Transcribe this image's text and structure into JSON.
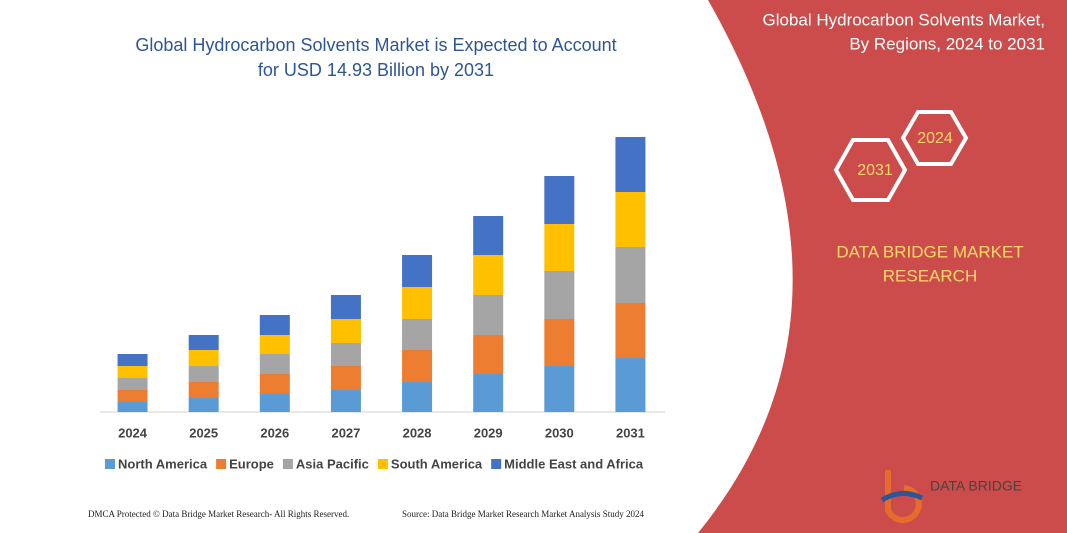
{
  "chart_data": {
    "type": "bar",
    "stacked": true,
    "title": [
      "Global Hydrocarbon Solvents Market is Expected to Account",
      "for USD 14.93 Billion by 2031"
    ],
    "categories": [
      "2024",
      "2025",
      "2026",
      "2027",
      "2028",
      "2029",
      "2030",
      "2031"
    ],
    "series": [
      {
        "name": "North America",
        "color": "#5b9bd5",
        "values": [
          10,
          14,
          18,
          22,
          30,
          38,
          46,
          54
        ]
      },
      {
        "name": "Europe",
        "color": "#ed7d31",
        "values": [
          12,
          16,
          20,
          24,
          32,
          39,
          47,
          55
        ]
      },
      {
        "name": "Asia Pacific",
        "color": "#a5a5a5",
        "values": [
          12,
          16,
          20,
          23,
          31,
          40,
          48,
          56
        ]
      },
      {
        "name": "South America",
        "color": "#ffc000",
        "values": [
          12,
          16,
          19,
          24,
          32,
          40,
          47,
          55
        ]
      },
      {
        "name": "Middle East and Africa",
        "color": "#4472c4",
        "values": [
          12,
          15,
          20,
          24,
          32,
          39,
          48,
          55
        ]
      }
    ],
    "ylim": [
      0,
      280
    ],
    "legend": "bottom"
  },
  "panel": {
    "title": [
      "Global Hydrocarbon Solvents Market,",
      "By Regions, 2024 to 2031"
    ],
    "hexagons": [
      "2024",
      "2031"
    ],
    "brand": [
      "DATA BRIDGE MARKET",
      "RESEARCH"
    ],
    "logo": "DATA BRIDGE"
  },
  "footer": {
    "left": "DMCA Protected © Data Bridge Market Research- All Rights Reserved.",
    "right": "Source: Data Bridge Market Research Market Analysis Study 2024"
  }
}
